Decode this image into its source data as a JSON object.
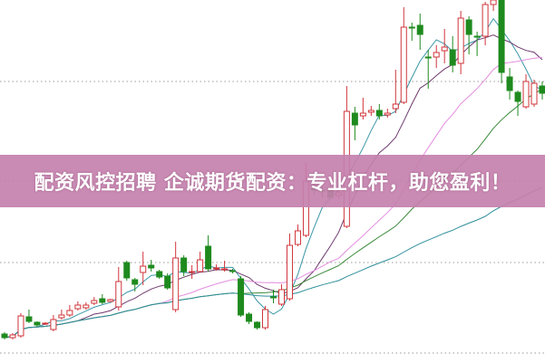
{
  "banner": {
    "text": "配资风控招聘 企诚期货配资：专业杠杆，助您盈利！"
  },
  "chart_data": {
    "type": "candlestick",
    "title": "",
    "xlabel": "",
    "ylabel": "",
    "grid": "horizontal-dotted",
    "colors": {
      "up": "#d0343a",
      "down": "#1e8a1e",
      "grid": "#9a9a9a",
      "banner": "#c480ac"
    },
    "candles": [
      [
        31,
        27,
        33,
        25
      ],
      [
        27,
        30,
        32,
        25
      ],
      [
        29,
        51,
        54,
        27
      ],
      [
        50,
        45,
        58,
        43
      ],
      [
        44,
        41,
        45,
        39
      ],
      [
        42,
        43,
        44,
        41
      ],
      [
        36,
        47,
        52,
        34
      ],
      [
        49,
        52,
        58,
        47
      ],
      [
        52,
        57,
        63,
        50
      ],
      [
        59,
        63,
        67,
        57
      ],
      [
        60,
        63,
        66,
        58
      ],
      [
        65,
        68,
        72,
        63
      ],
      [
        70,
        66,
        75,
        64
      ],
      [
        67,
        69,
        70,
        66
      ],
      [
        61,
        89,
        105,
        57
      ],
      [
        110,
        93,
        112,
        90
      ],
      [
        91,
        86,
        93,
        78
      ],
      [
        99,
        106,
        122,
        85
      ],
      [
        107,
        104,
        113,
        100
      ],
      [
        100,
        94,
        102,
        92
      ],
      [
        95,
        82,
        98,
        80
      ],
      [
        58,
        115,
        133,
        55
      ],
      [
        115,
        100,
        118,
        95
      ],
      [
        99,
        100,
        107,
        92
      ],
      [
        100,
        113,
        122,
        99
      ],
      [
        128,
        103,
        140,
        100
      ],
      [
        103,
        104,
        108,
        101
      ],
      [
        102,
        103,
        112,
        100
      ],
      [
        101,
        100,
        103,
        98
      ],
      [
        92,
        52,
        95,
        50
      ],
      [
        53,
        45,
        55,
        42
      ],
      [
        44,
        38,
        45,
        36
      ],
      [
        38,
        58,
        62,
        36
      ],
      [
        72,
        72,
        80,
        65
      ],
      [
        64,
        80,
        86,
        62
      ],
      [
        70,
        129,
        142,
        68
      ],
      [
        130,
        145,
        152,
        128
      ],
      [
        140,
        200,
        220,
        138
      ],
      [
        195,
        190,
        200,
        185
      ],
      [
        190,
        190,
        195,
        182
      ],
      [
        192,
        182,
        198,
        180
      ],
      [
        184,
        187,
        190,
        180
      ],
      [
        150,
        277,
        305,
        148
      ],
      [
        275,
        262,
        282,
        245
      ],
      [
        272,
        275,
        292,
        268
      ],
      [
        276,
        278,
        283,
        272
      ],
      [
        278,
        272,
        285,
        268
      ],
      [
        273,
        275,
        280,
        270
      ],
      [
        280,
        285,
        323,
        275
      ],
      [
        287,
        370,
        392,
        285
      ],
      [
        370,
        370,
        375,
        355
      ],
      [
        372,
        362,
        385,
        345
      ],
      [
        337,
        336,
        345,
        302
      ],
      [
        337,
        342,
        350,
        325
      ],
      [
        344,
        348,
        368,
        330
      ],
      [
        345,
        328,
        360,
        320
      ],
      [
        330,
        380,
        388,
        318
      ],
      [
        378,
        362,
        382,
        340
      ],
      [
        360,
        360,
        365,
        338
      ],
      [
        360,
        395,
        398,
        350
      ],
      [
        395,
        400,
        400,
        388
      ],
      [
        400,
        320,
        400,
        308
      ],
      [
        315,
        300,
        325,
        290
      ],
      [
        298,
        288,
        300,
        272
      ],
      [
        282,
        310,
        318,
        280
      ],
      [
        285,
        308,
        312,
        282
      ],
      [
        305,
        297,
        310,
        290
      ]
    ],
    "candle_fields": [
      "open",
      "close",
      "high",
      "low"
    ],
    "moving_averages": [
      {
        "period": 5,
        "color": "#3d97a8"
      },
      {
        "period": 10,
        "color": "#6e3a6e"
      },
      {
        "period": 20,
        "color": "#e48ee0"
      },
      {
        "period": 30,
        "color": "#3a8a3a"
      },
      {
        "period": 60,
        "color": "#2f8f9c"
      }
    ],
    "ylim": [
      0,
      400
    ]
  }
}
